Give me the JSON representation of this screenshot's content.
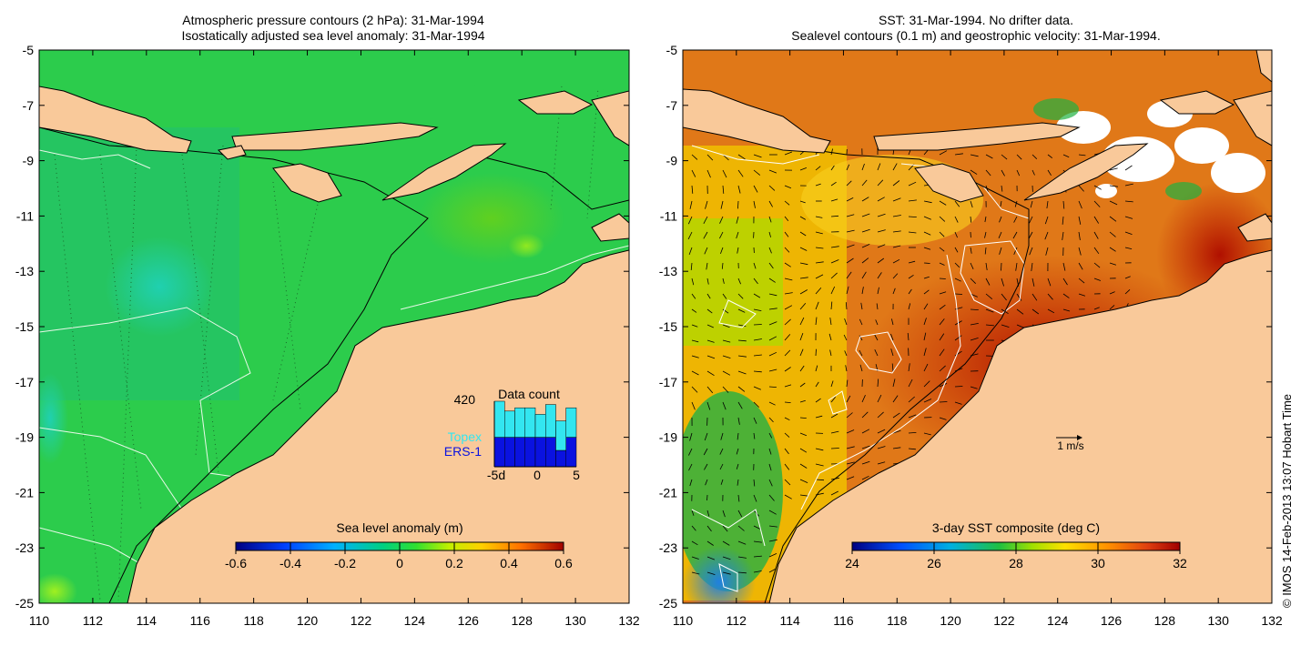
{
  "left_panel": {
    "title_line1": "Atmospheric pressure contours (2 hPa): 31-Mar-1994",
    "title_line2": "Isostatically adjusted sea level anomaly: 31-Mar-1994",
    "y_ticks": [
      "-5",
      "-7",
      "-9",
      "-11",
      "-13",
      "-15",
      "-17",
      "-19",
      "-21",
      "-23",
      "-25"
    ],
    "x_ticks": [
      "110",
      "112",
      "114",
      "116",
      "118",
      "120",
      "122",
      "124",
      "126",
      "128",
      "130",
      "132"
    ],
    "colorbar": {
      "title": "Sea level anomaly (m)",
      "ticks": [
        "-0.6",
        "-0.4",
        "-0.2",
        "0",
        "0.2",
        "0.4",
        "0.6"
      ]
    },
    "inset": {
      "title": "Data count",
      "max_label": "420",
      "legend_topex": "Topex",
      "legend_ers": "ERS-1",
      "x_labels": [
        "-5d",
        "0",
        "5"
      ],
      "topex_color": "#33e6f0",
      "ers_color": "#0a12e0",
      "topex_fraction": [
        0.55,
        0.4,
        0.45,
        0.45,
        0.35,
        0.5,
        0.45,
        0.45
      ],
      "ers_fraction": [
        0.45,
        0.45,
        0.45,
        0.45,
        0.45,
        0.45,
        0.25,
        0.45
      ]
    }
  },
  "right_panel": {
    "title_line1": "SST: 31-Mar-1994. No drifter data.",
    "title_line2": "Sealevel contours (0.1 m) and geostrophic velocity: 31-Mar-1994.",
    "y_ticks": [
      "-5",
      "-7",
      "-9",
      "-11",
      "-13",
      "-15",
      "-17",
      "-19",
      "-21",
      "-23",
      "-25"
    ],
    "x_ticks": [
      "110",
      "112",
      "114",
      "116",
      "118",
      "120",
      "122",
      "124",
      "126",
      "128",
      "130",
      "132"
    ],
    "colorbar": {
      "title": "3-day SST composite (deg C)",
      "ticks": [
        "24",
        "26",
        "28",
        "30",
        "32"
      ]
    },
    "scale_label": "1 m/s"
  },
  "credit": "© IMOS 14-Feb-2013 13:07 Hobart Time",
  "colors": {
    "land": "#f9c99a",
    "ocean_left": "#2ecc50",
    "ocean_right": "#d2691e"
  }
}
